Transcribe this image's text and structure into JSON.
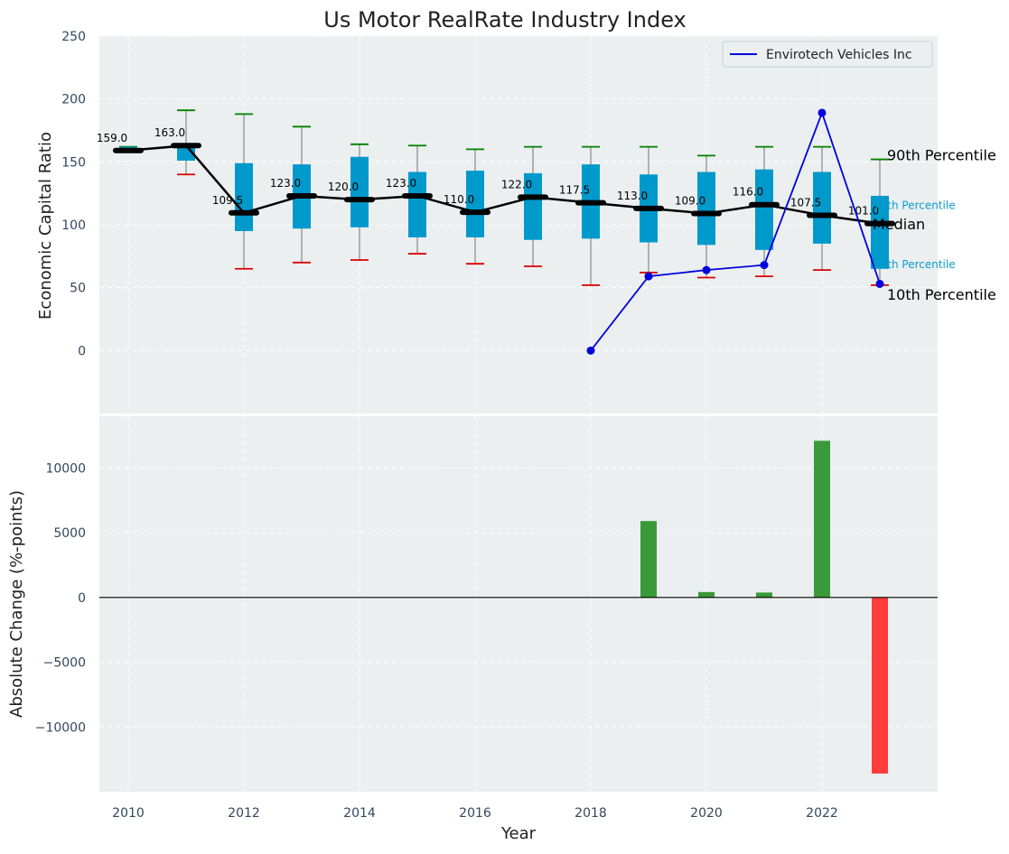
{
  "chart_data": [
    {
      "type": "box",
      "title": "Us Motor RealRate Industry Index",
      "ylabel": "Economic Capital Ratio",
      "xlabel": "",
      "ylim": [
        -50,
        250
      ],
      "yticks": [
        0,
        50,
        100,
        150,
        200,
        250
      ],
      "xlim": [
        2009.5,
        2024.0
      ],
      "grid": true,
      "legend": {
        "position": "top-right",
        "entries": [
          "Envirotech Vehicles Inc"
        ]
      },
      "years": [
        2010,
        2011,
        2012,
        2013,
        2014,
        2015,
        2016,
        2017,
        2018,
        2019,
        2020,
        2021,
        2022,
        2023
      ],
      "median": [
        159.0,
        163.0,
        109.5,
        123.0,
        120.0,
        123.0,
        110.0,
        122.0,
        117.5,
        113.0,
        109.0,
        116.0,
        107.5,
        101.0
      ],
      "median_labels": [
        "159.0",
        "163.0",
        "109.5",
        "123.0",
        "120.0",
        "123.0",
        "110.0",
        "122.0",
        "117.5",
        "113.0",
        "109.0",
        "116.0",
        "107.5",
        "101.0"
      ],
      "p25": [
        158,
        151,
        95,
        97,
        98,
        90,
        90,
        88,
        89,
        86,
        84,
        80,
        85,
        65
      ],
      "p75": [
        162,
        163,
        149,
        148,
        154,
        142,
        143,
        141,
        148,
        140,
        142,
        144,
        142,
        123
      ],
      "p10": [
        159,
        140,
        65,
        70,
        72,
        77,
        69,
        67,
        52,
        62,
        58,
        59,
        64,
        52
      ],
      "p90": [
        162,
        191,
        188,
        178,
        164,
        163,
        160,
        162,
        162,
        162,
        155,
        162,
        162,
        152
      ],
      "series": [
        {
          "name": "Envirotech Vehicles Inc",
          "x": [
            2018,
            2019,
            2020,
            2021,
            2022,
            2023
          ],
          "y": [
            0,
            59,
            64,
            68,
            189,
            53
          ]
        }
      ],
      "annotations": [
        {
          "text": "90th Percentile",
          "value": 155
        },
        {
          "text": "75th Percentile",
          "value": 116
        },
        {
          "text": "Median",
          "value": 100
        },
        {
          "text": "25th Percentile",
          "value": 69
        },
        {
          "text": "10th Percentile",
          "value": 44
        }
      ],
      "colors": {
        "box": "#0099cc",
        "median": "#000000",
        "p90_cap": "#008000",
        "p10_cap": "#dd0000",
        "series": "#0000dd",
        "pct_small": "#0e9bd0",
        "background": "#ebeff0"
      }
    },
    {
      "type": "bar",
      "ylabel": "Absolute Change (%-points)",
      "xlabel": "Year",
      "ylim": [
        -15000,
        14000
      ],
      "yticks": [
        -10000,
        -5000,
        0,
        5000,
        10000
      ],
      "ytick_labels": [
        "−10000",
        "−5000",
        "0",
        "5000",
        "10000"
      ],
      "xticks": [
        2010,
        2012,
        2014,
        2016,
        2018,
        2020,
        2022
      ],
      "x": [
        2019,
        2020,
        2021,
        2022,
        2023
      ],
      "values": [
        5900,
        420,
        380,
        12100,
        -13600
      ],
      "colors": {
        "positive": "#3a9a3a",
        "negative": "#ff3d3d"
      }
    }
  ]
}
